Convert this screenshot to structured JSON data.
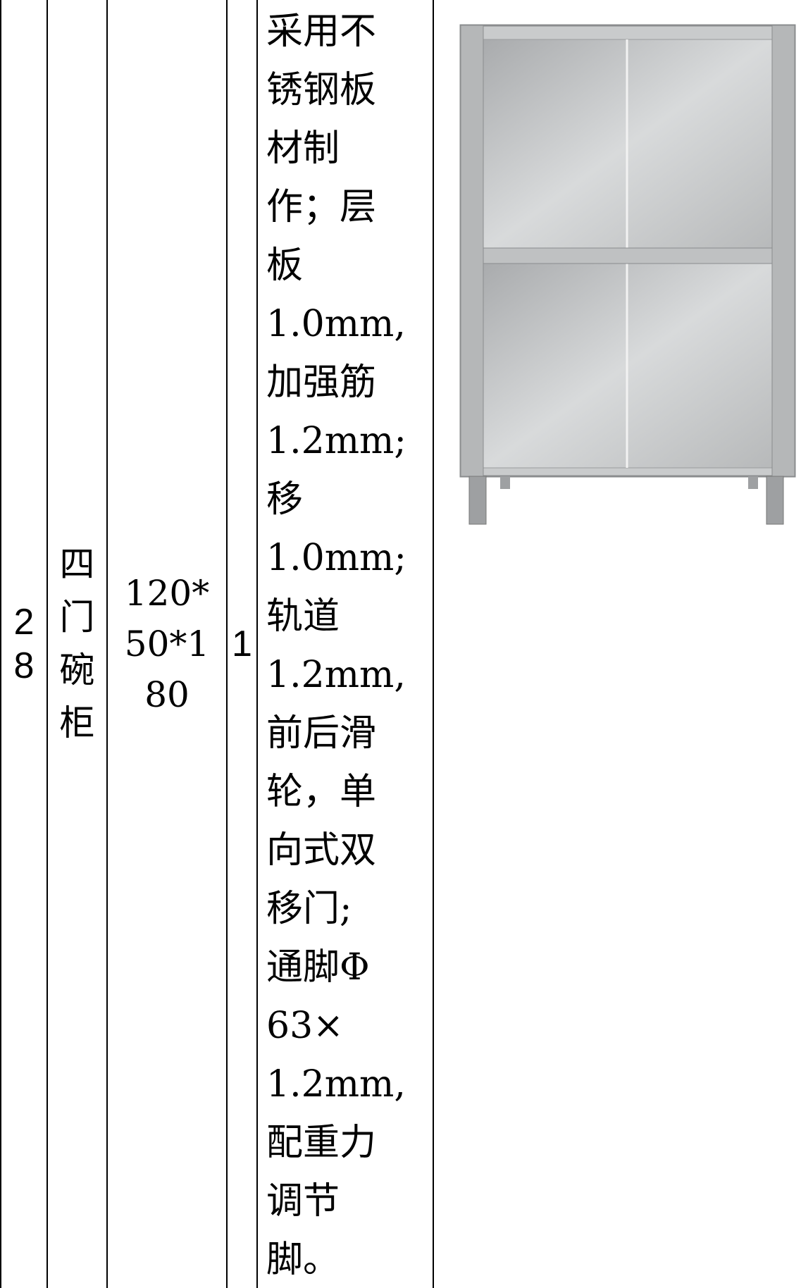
{
  "table": {
    "rows": [
      [
        "28",
        "四门碗柜",
        "120*50*180",
        "1",
        [
          "采用不",
          "锈钢板",
          "材制",
          "作；层",
          "板",
          "1.0mm,",
          "加强筋",
          "1.2mm;",
          "移",
          "1.0mm;",
          "轨道",
          "1.2mm,",
          "前后滑",
          "轮，单",
          "向式双",
          "移门;",
          "通脚Φ",
          "63×",
          "1.2mm,",
          "配重力",
          "调节",
          "脚。"
        ]
      ]
    ]
  }
}
